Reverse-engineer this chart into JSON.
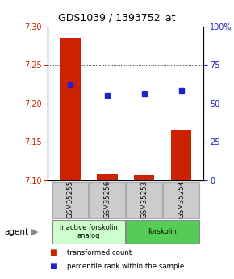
{
  "title": "GDS1039 / 1393752_at",
  "samples": [
    "GSM35255",
    "GSM35256",
    "GSM35253",
    "GSM35254"
  ],
  "red_values": [
    7.285,
    7.108,
    7.107,
    7.165
  ],
  "blue_percentiles": [
    62,
    55,
    56,
    58
  ],
  "ylim_left": [
    7.1,
    7.3
  ],
  "ylim_right": [
    0,
    100
  ],
  "yticks_left": [
    7.1,
    7.15,
    7.2,
    7.25,
    7.3
  ],
  "yticks_right": [
    0,
    25,
    50,
    75,
    100
  ],
  "red_color": "#cc2200",
  "blue_color": "#2222cc",
  "bar_width": 0.55,
  "agent_groups": [
    {
      "label": "inactive forskolin\nanalog",
      "samples": [
        0,
        1
      ],
      "color": "#ccffcc"
    },
    {
      "label": "forskolin",
      "samples": [
        2,
        3
      ],
      "color": "#55cc55"
    }
  ],
  "agent_label": "agent",
  "legend_red": "transformed count",
  "legend_blue": "percentile rank within the sample",
  "background_color": "#ffffff",
  "sample_box_color": "#cccccc",
  "sample_box_edge": "#aaaaaa"
}
